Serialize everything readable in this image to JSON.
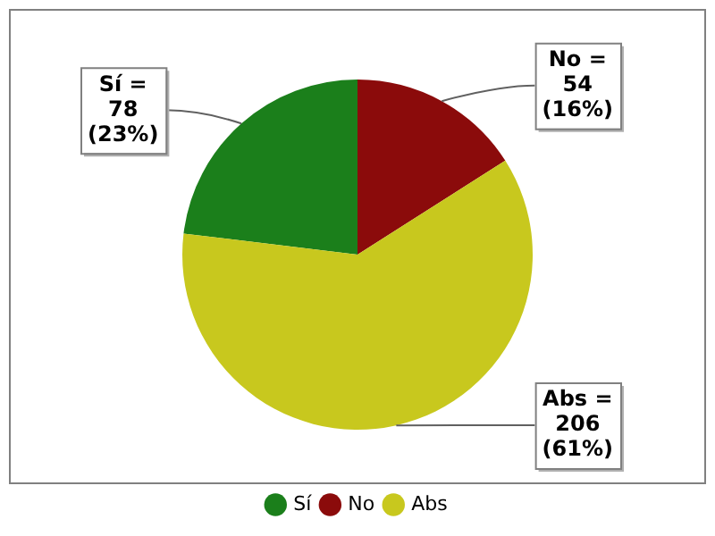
{
  "chart_data": {
    "type": "pie",
    "categories": [
      "Sí",
      "No",
      "Abs"
    ],
    "values": [
      78,
      54,
      206
    ],
    "colors": [
      "#1b7f1b",
      "#8b0b0b",
      "#c8c81e"
    ],
    "value_labels": [
      "Sí = 78 (23%)",
      "No = 54 (16%)",
      "Abs = 206 (61%)"
    ],
    "legend": "bottom"
  }
}
